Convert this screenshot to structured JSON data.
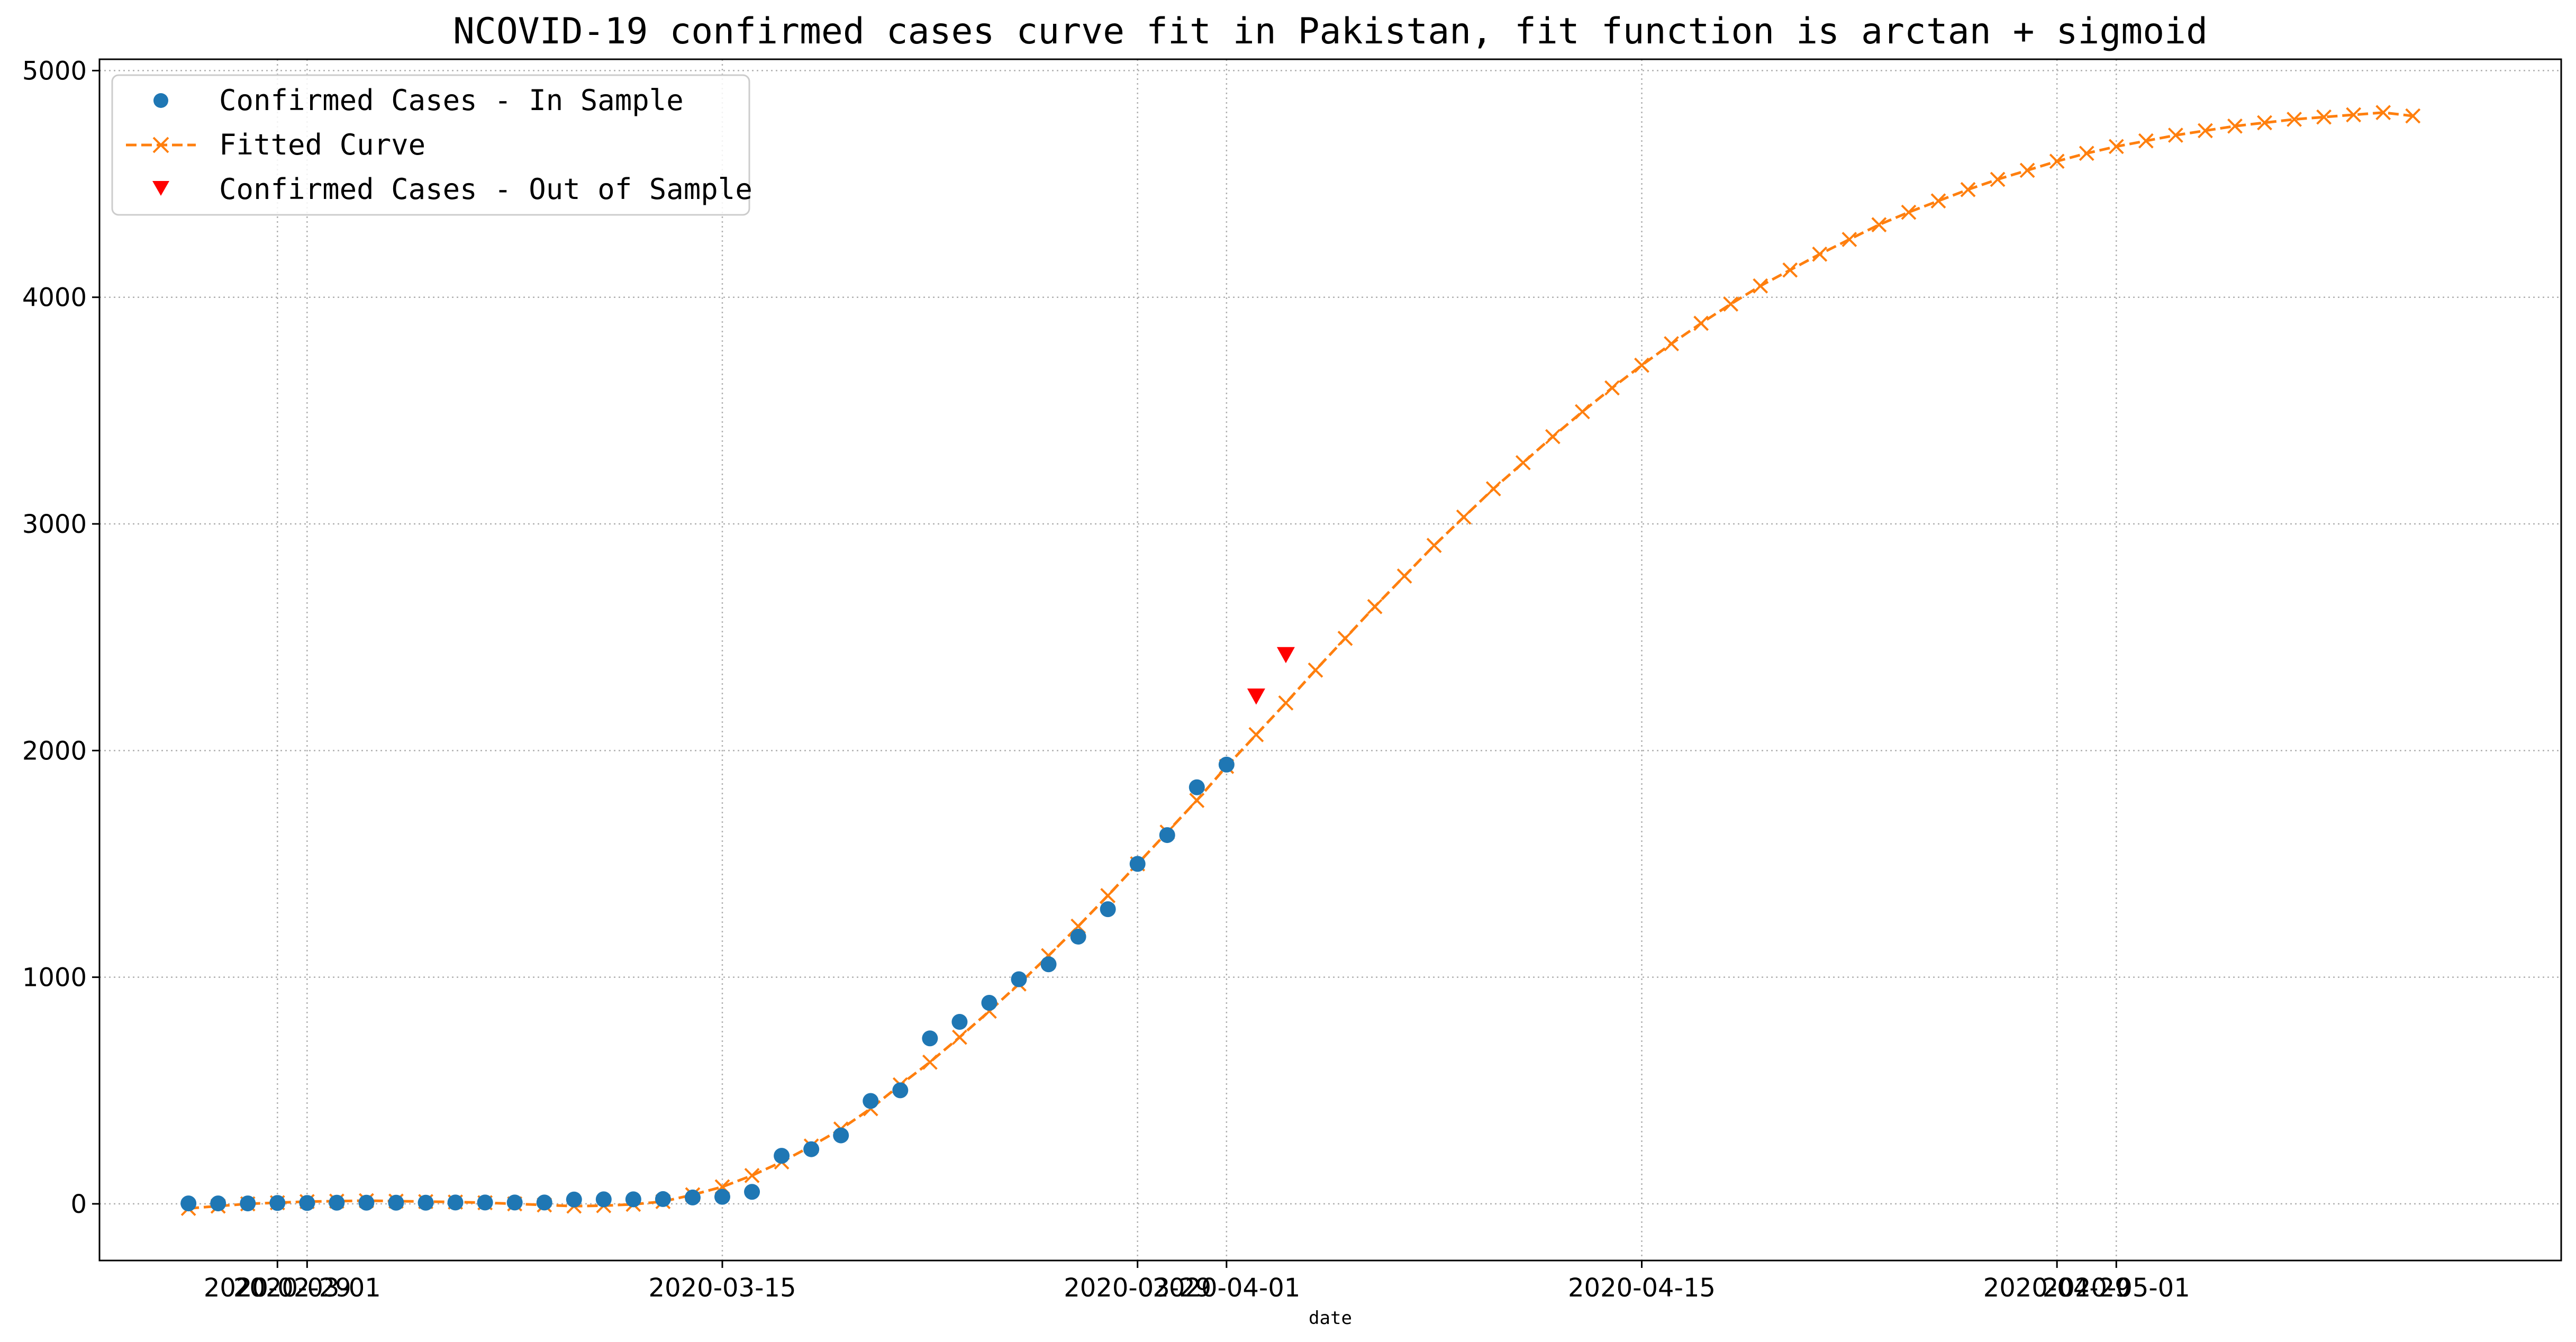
{
  "chart_data": {
    "type": "line",
    "title": "NCOVID-19 confirmed cases curve fit in Pakistan, fit function is arctan + sigmoid",
    "xlabel": "date",
    "ylabel": "",
    "ylim": [
      -250,
      5050
    ],
    "xlim": [
      "2020-02-23",
      "2020-05-16"
    ],
    "grid": true,
    "legend_position": "top-left",
    "y_ticks": [
      "0",
      "1000",
      "2000",
      "3000",
      "4000",
      "5000"
    ],
    "x_tick_labels": [
      {
        "date": "2020-02-29",
        "label": "2020-02-29"
      },
      {
        "date": "2020-03-01",
        "label": "2020-03-01"
      },
      {
        "date": "2020-03-15",
        "label": "2020-03-15"
      },
      {
        "date": "2020-03-29",
        "label": "2020-03-29"
      },
      {
        "date": "2020-04-01",
        "label": "2020-04-01"
      },
      {
        "date": "2020-04-15",
        "label": "2020-04-15"
      },
      {
        "date": "2020-04-29",
        "label": "2020-04-29"
      },
      {
        "date": "2020-05-01",
        "label": "2020-05-01"
      }
    ],
    "series": [
      {
        "name": "Confirmed Cases - In Sample",
        "style": "scatter-circle",
        "color": "#1f77b4",
        "x": [
          "2020-02-26",
          "2020-02-27",
          "2020-02-28",
          "2020-02-29",
          "2020-03-01",
          "2020-03-02",
          "2020-03-03",
          "2020-03-04",
          "2020-03-05",
          "2020-03-06",
          "2020-03-07",
          "2020-03-08",
          "2020-03-09",
          "2020-03-10",
          "2020-03-11",
          "2020-03-12",
          "2020-03-13",
          "2020-03-14",
          "2020-03-15",
          "2020-03-16",
          "2020-03-17",
          "2020-03-18",
          "2020-03-19",
          "2020-03-20",
          "2020-03-21",
          "2020-03-22",
          "2020-03-23",
          "2020-03-24",
          "2020-03-25",
          "2020-03-26",
          "2020-03-27",
          "2020-03-28",
          "2020-03-29",
          "2020-03-30",
          "2020-03-31",
          "2020-04-01"
        ],
        "y": [
          2,
          2,
          2,
          4,
          4,
          5,
          5,
          5,
          5,
          6,
          6,
          6,
          6,
          19,
          20,
          20,
          21,
          28,
          31,
          53,
          212,
          241,
          302,
          454,
          501,
          730,
          803,
          887,
          991,
          1057,
          1179,
          1300,
          1500,
          1627,
          1838,
          1938
        ]
      },
      {
        "name": "Fitted Curve",
        "style": "dashed-line-x",
        "color": "#ff7f0e",
        "x": [
          "2020-02-26",
          "2020-02-27",
          "2020-02-28",
          "2020-02-29",
          "2020-03-01",
          "2020-03-02",
          "2020-03-03",
          "2020-03-04",
          "2020-03-05",
          "2020-03-06",
          "2020-03-07",
          "2020-03-08",
          "2020-03-09",
          "2020-03-10",
          "2020-03-11",
          "2020-03-12",
          "2020-03-13",
          "2020-03-14",
          "2020-03-15",
          "2020-03-16",
          "2020-03-17",
          "2020-03-18",
          "2020-03-19",
          "2020-03-20",
          "2020-03-21",
          "2020-03-22",
          "2020-03-23",
          "2020-03-24",
          "2020-03-25",
          "2020-03-26",
          "2020-03-27",
          "2020-03-28",
          "2020-03-29",
          "2020-03-30",
          "2020-03-31",
          "2020-04-01",
          "2020-04-02",
          "2020-04-03",
          "2020-04-04",
          "2020-04-05",
          "2020-04-06",
          "2020-04-07",
          "2020-04-08",
          "2020-04-09",
          "2020-04-10",
          "2020-04-11",
          "2020-04-12",
          "2020-04-13",
          "2020-04-14",
          "2020-04-15",
          "2020-04-16",
          "2020-04-17",
          "2020-04-18",
          "2020-04-19",
          "2020-04-20",
          "2020-04-21",
          "2020-04-22",
          "2020-04-23",
          "2020-04-24",
          "2020-04-25",
          "2020-04-26",
          "2020-04-27",
          "2020-04-28",
          "2020-04-29",
          "2020-04-30",
          "2020-05-01",
          "2020-05-02",
          "2020-05-03",
          "2020-05-04",
          "2020-05-05",
          "2020-05-06",
          "2020-05-07",
          "2020-05-08",
          "2020-05-09",
          "2020-05-10",
          "2020-05-11"
        ],
        "y": [
          -20,
          -10,
          0,
          5,
          10,
          12,
          14,
          12,
          10,
          8,
          5,
          0,
          -5,
          -10,
          -8,
          -2,
          10,
          40,
          75,
          125,
          185,
          255,
          330,
          420,
          525,
          625,
          735,
          850,
          970,
          1095,
          1225,
          1360,
          1500,
          1640,
          1780,
          1930,
          2070,
          2210,
          2355,
          2495,
          2635,
          2770,
          2905,
          3030,
          3155,
          3270,
          3385,
          3495,
          3600,
          3700,
          3795,
          3885,
          3970,
          4050,
          4120,
          4190,
          4255,
          4320,
          4375,
          4425,
          4475,
          4520,
          4560,
          4600,
          4635,
          4665,
          4690,
          4715,
          4735,
          4755,
          4770,
          4785,
          4795,
          4805,
          4815,
          4800
        ]
      },
      {
        "name": "Confirmed Cases - Out of Sample",
        "style": "scatter-triangle-down",
        "color": "#ff0000",
        "x": [
          "2020-04-02",
          "2020-04-03"
        ],
        "y": [
          2238,
          2421
        ]
      }
    ]
  }
}
